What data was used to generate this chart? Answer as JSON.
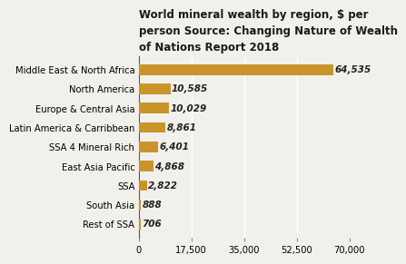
{
  "title": "World mineral wealth by region, $ per\nperson Source: Changing Nature of Wealth\nof Nations Report 2018",
  "categories": [
    "Middle East & North Africa",
    "North America",
    "Europe & Central Asia",
    "Latin America & Carribbean",
    "SSA 4 Mineral Rich",
    "East Asia Pacific",
    "SSA",
    "South Asia",
    "Rest of SSA"
  ],
  "values": [
    64535,
    10585,
    10029,
    8861,
    6401,
    4868,
    2822,
    888,
    706
  ],
  "labels": [
    "64,535",
    "10,585",
    "10,029",
    "8,861",
    "6,401",
    "4,868",
    "2,822",
    "888",
    "706"
  ],
  "bar_color": "#C9952A",
  "background_color": "#F2F0EB",
  "xlim": [
    0,
    70000
  ],
  "xticks": [
    0,
    17500,
    35000,
    52500,
    70000
  ],
  "xtick_labels": [
    "0",
    "17,500",
    "35,000",
    "52,500",
    "70,000"
  ],
  "title_fontsize": 8.5,
  "label_fontsize": 7.2,
  "tick_fontsize": 7.2,
  "value_fontsize": 7.5
}
